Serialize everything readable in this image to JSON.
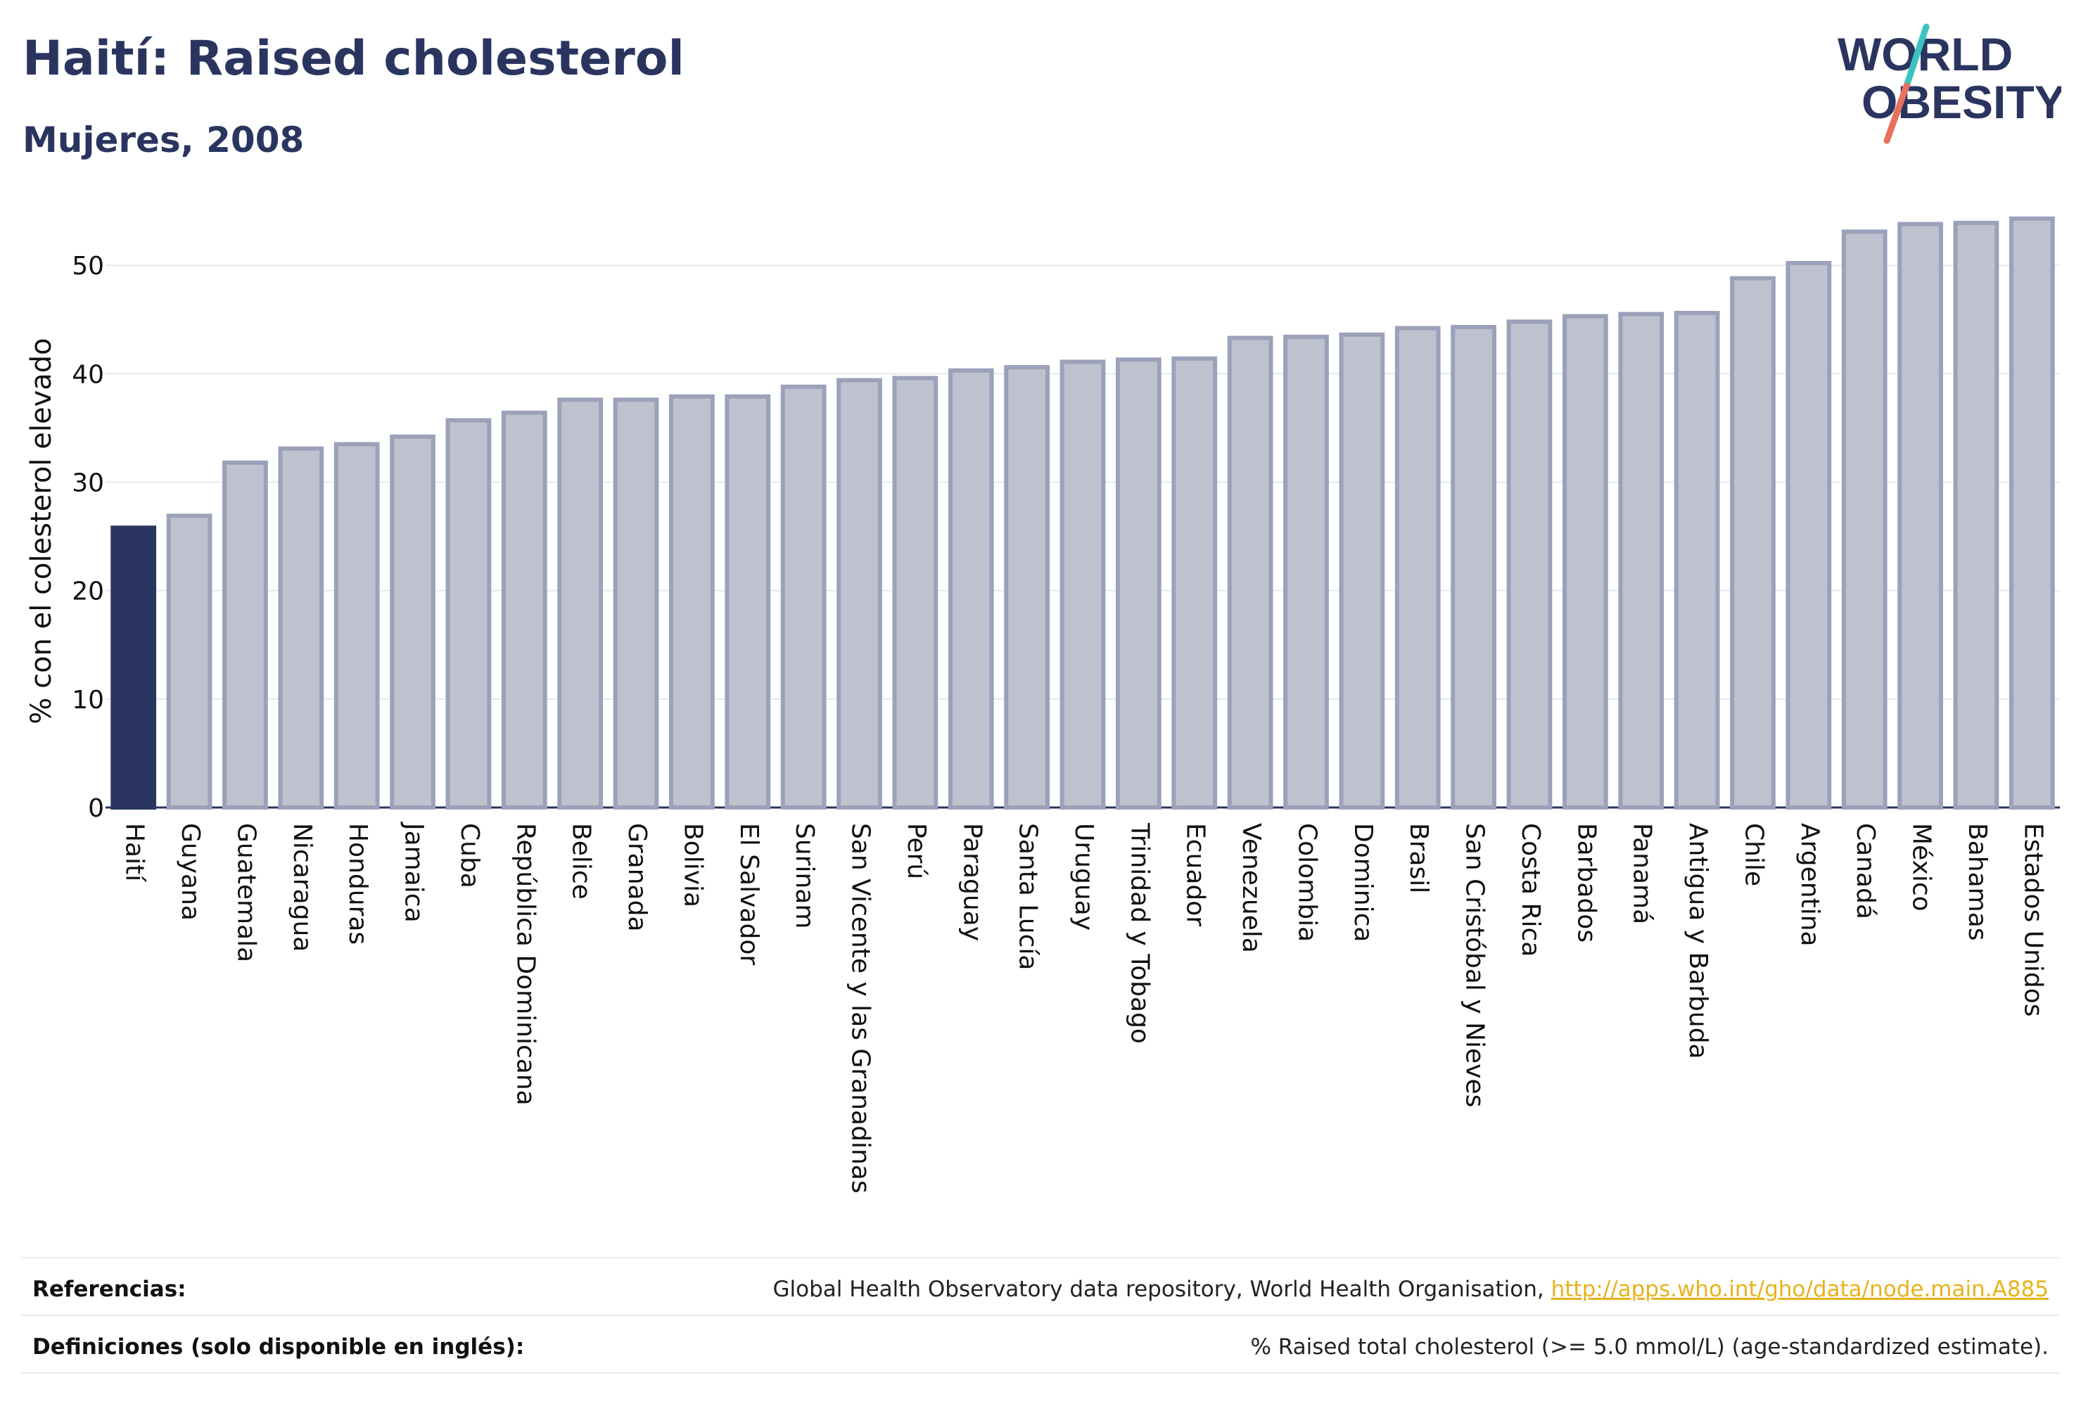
{
  "header": {
    "title": "Haití: Raised cholesterol",
    "subtitle": "Mujeres, 2008",
    "logo_line1": "WORLD",
    "logo_line2": "OBESITY"
  },
  "colors": {
    "highlight": "#2a3560",
    "bar_fill": "#bec1ce",
    "bar_stroke": "#9ba1b9",
    "logo_text": "#2a355f",
    "logo_slash_teal": "#3cc3c0",
    "logo_slash_red": "#e8705c",
    "link": "#e8b21a"
  },
  "chart_data": {
    "type": "bar",
    "title": "Haití: Raised cholesterol",
    "subtitle": "Mujeres, 2008",
    "xlabel": "",
    "ylabel": "% con el colesterol elevado",
    "ylim": [
      0,
      55
    ],
    "yticks": [
      0,
      10,
      20,
      30,
      40,
      50
    ],
    "grid": true,
    "highlight_category": "Haití",
    "categories": [
      "Haití",
      "Guyana",
      "Guatemala",
      "Nicaragua",
      "Honduras",
      "Jamaica",
      "Cuba",
      "República Dominicana",
      "Belice",
      "Granada",
      "Bolivia",
      "El Salvador",
      "Surinam",
      "San Vicente y las Granadinas",
      "Perú",
      "Paraguay",
      "Santa Lucía",
      "Uruguay",
      "Trinidad y Tobago",
      "Ecuador",
      "Venezuela",
      "Colombia",
      "Dominica",
      "Brasil",
      "San Cristóbal y Nieves",
      "Costa Rica",
      "Barbados",
      "Panamá",
      "Antigua y Barbuda",
      "Chile",
      "Argentina",
      "Canadá",
      "México",
      "Bahamas",
      "Estados Unidos"
    ],
    "values": [
      25.8,
      26.9,
      31.8,
      33.1,
      33.5,
      34.2,
      35.7,
      36.4,
      37.6,
      37.6,
      37.9,
      37.9,
      38.8,
      39.4,
      39.6,
      40.3,
      40.6,
      41.1,
      41.3,
      41.4,
      43.3,
      43.4,
      43.6,
      44.2,
      44.3,
      44.8,
      45.3,
      45.5,
      45.6,
      48.8,
      50.2,
      53.1,
      53.8,
      53.9,
      54.3
    ]
  },
  "footer": {
    "references_label": "Referencias:",
    "references_text": "Global Health Observatory data repository, World Health Organisation, ",
    "references_link": "http://apps.who.int/gho/data/node.main.A885",
    "definitions_label": "Definiciones (solo disponible en inglés):",
    "definitions_text": "% Raised total cholesterol (>= 5.0 mmol/L) (age-standardized estimate)."
  }
}
